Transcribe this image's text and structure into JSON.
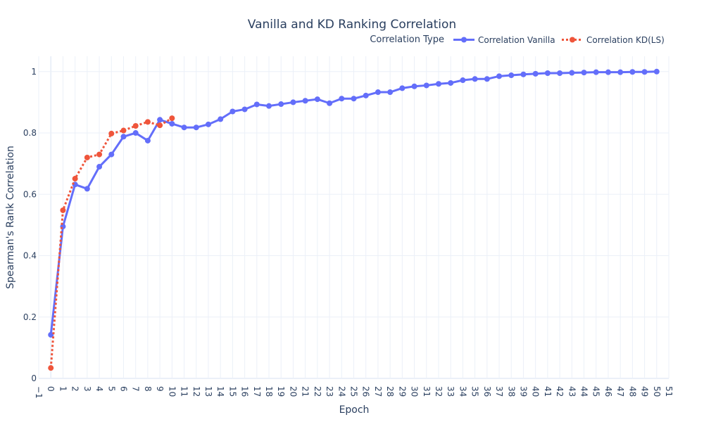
{
  "chart_data": {
    "type": "line",
    "title": "Vanilla and KD Ranking Correlation",
    "xlabel": "Epoch",
    "ylabel": "Spearman's Rank Correlation",
    "xlim": [
      -1,
      51
    ],
    "ylim": [
      0,
      1.05
    ],
    "y_ticks": [
      0,
      0.2,
      0.4,
      0.6,
      0.8,
      1
    ],
    "y_tick_labels": [
      "0",
      "0.2",
      "0.4",
      "0.6",
      "0.8",
      "1"
    ],
    "x_ticks": [
      -1,
      0,
      1,
      2,
      3,
      4,
      5,
      6,
      7,
      8,
      9,
      10,
      11,
      12,
      13,
      14,
      15,
      16,
      17,
      18,
      19,
      20,
      21,
      22,
      23,
      24,
      25,
      26,
      27,
      28,
      29,
      30,
      31,
      32,
      33,
      34,
      35,
      36,
      37,
      38,
      39,
      40,
      41,
      42,
      43,
      44,
      45,
      46,
      47,
      48,
      49,
      50,
      51
    ],
    "x_tick_labels": [
      "−1",
      "0",
      "1",
      "2",
      "3",
      "4",
      "5",
      "6",
      "7",
      "8",
      "9",
      "10",
      "11",
      "12",
      "13",
      "14",
      "15",
      "16",
      "17",
      "18",
      "19",
      "20",
      "21",
      "22",
      "23",
      "24",
      "25",
      "26",
      "27",
      "28",
      "29",
      "30",
      "31",
      "32",
      "33",
      "34",
      "35",
      "36",
      "37",
      "38",
      "39",
      "40",
      "41",
      "42",
      "43",
      "44",
      "45",
      "46",
      "47",
      "48",
      "49",
      "50",
      "51"
    ],
    "grid": true,
    "legend": {
      "title": "Correlation Type",
      "placement": "top-right"
    },
    "series": [
      {
        "name": "Correlation Vanilla",
        "color": "#636efa",
        "dash": "solid",
        "x": [
          0,
          1,
          2,
          3,
          4,
          5,
          6,
          7,
          8,
          9,
          10,
          11,
          12,
          13,
          14,
          15,
          16,
          17,
          18,
          19,
          20,
          21,
          22,
          23,
          24,
          25,
          26,
          27,
          28,
          29,
          30,
          31,
          32,
          33,
          34,
          35,
          36,
          37,
          38,
          39,
          40,
          41,
          42,
          43,
          44,
          45,
          46,
          47,
          48,
          49,
          50
        ],
        "values": [
          0.142,
          0.495,
          0.632,
          0.618,
          0.69,
          0.73,
          0.788,
          0.8,
          0.775,
          0.843,
          0.83,
          0.818,
          0.818,
          0.828,
          0.845,
          0.87,
          0.877,
          0.893,
          0.888,
          0.894,
          0.9,
          0.905,
          0.91,
          0.897,
          0.912,
          0.912,
          0.922,
          0.933,
          0.933,
          0.946,
          0.952,
          0.955,
          0.96,
          0.963,
          0.972,
          0.976,
          0.976,
          0.985,
          0.988,
          0.991,
          0.993,
          0.995,
          0.995,
          0.996,
          0.997,
          0.998,
          0.998,
          0.998,
          0.999,
          0.999,
          1.0
        ]
      },
      {
        "name": "Correlation KD(LS)",
        "color": "#ef553b",
        "dash": "dot",
        "x": [
          0,
          1,
          2,
          3,
          4,
          5,
          6,
          7,
          8,
          9,
          10
        ],
        "values": [
          0.034,
          0.548,
          0.651,
          0.72,
          0.73,
          0.798,
          0.808,
          0.823,
          0.836,
          0.825,
          0.848
        ]
      }
    ]
  }
}
